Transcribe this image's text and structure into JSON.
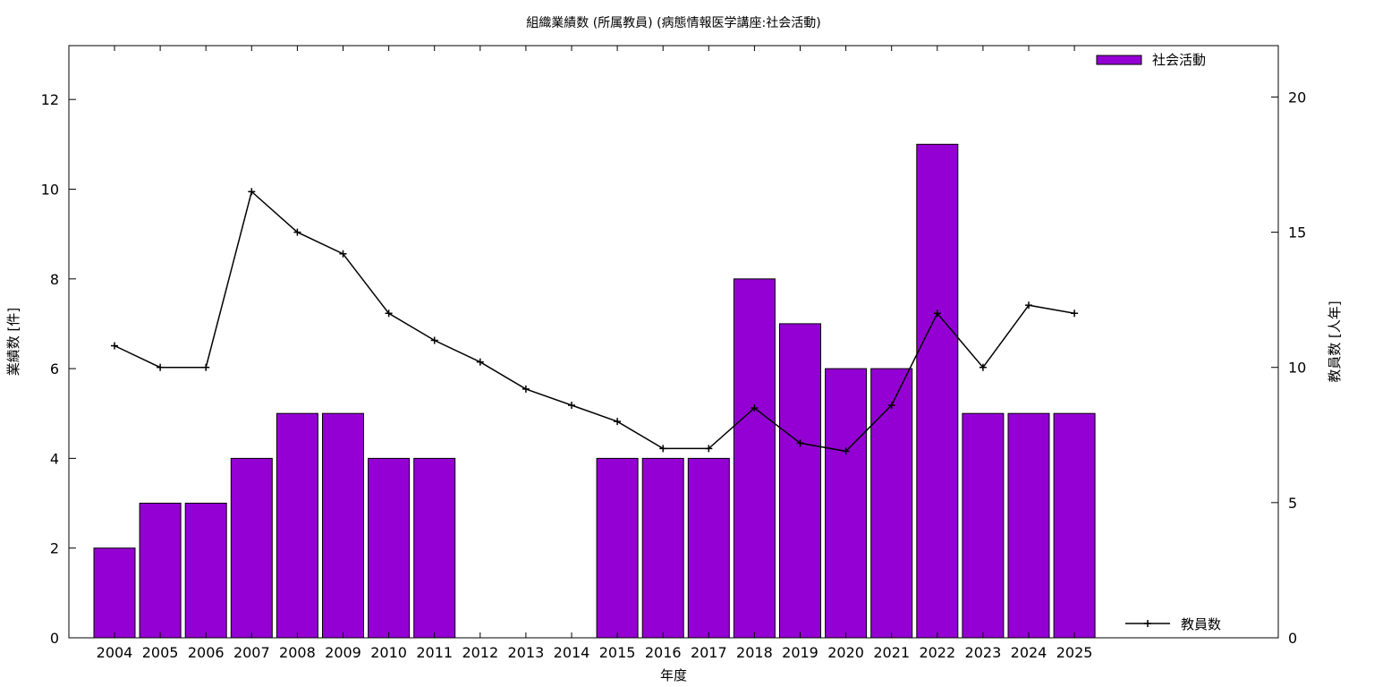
{
  "chart_data": {
    "type": "bar",
    "title": "組織業績数 (所属教員) (病態情報医学講座:社会活動)",
    "xlabel": "年度",
    "ylabel": "業績数 [件]",
    "y2label": "教員数 [人年]",
    "categories": [
      "2004",
      "2005",
      "2006",
      "2007",
      "2008",
      "2009",
      "2010",
      "2011",
      "2012",
      "2013",
      "2014",
      "2015",
      "2016",
      "2017",
      "2018",
      "2019",
      "2020",
      "2021",
      "2022",
      "2023",
      "2024",
      "2025"
    ],
    "series": [
      {
        "name": "社会活動",
        "type": "bar",
        "axis": "left",
        "color": "#9400d3",
        "values": [
          2,
          3,
          3,
          4,
          5,
          5,
          4,
          4,
          0,
          0,
          0,
          4,
          4,
          4,
          8,
          7,
          6,
          6,
          11,
          5,
          5,
          5
        ]
      },
      {
        "name": "教員数",
        "type": "line",
        "axis": "right",
        "color": "#000000",
        "values": [
          10.8,
          10,
          10,
          16.5,
          15,
          14.2,
          12,
          11,
          10.2,
          9.2,
          8.6,
          8,
          7,
          7,
          8.5,
          7.2,
          6.9,
          8.6,
          12,
          10,
          12.3,
          12
        ]
      }
    ],
    "ylim": [
      0,
      13.2
    ],
    "y2lim": [
      0,
      21.9
    ],
    "yticks": [
      "0",
      "2",
      "4",
      "6",
      "8",
      "10",
      "12"
    ],
    "y2ticks": [
      "0",
      "5",
      "10",
      "15",
      "20"
    ],
    "legend_position": "top-right (bars), bottom-right (line)",
    "grid": false
  }
}
